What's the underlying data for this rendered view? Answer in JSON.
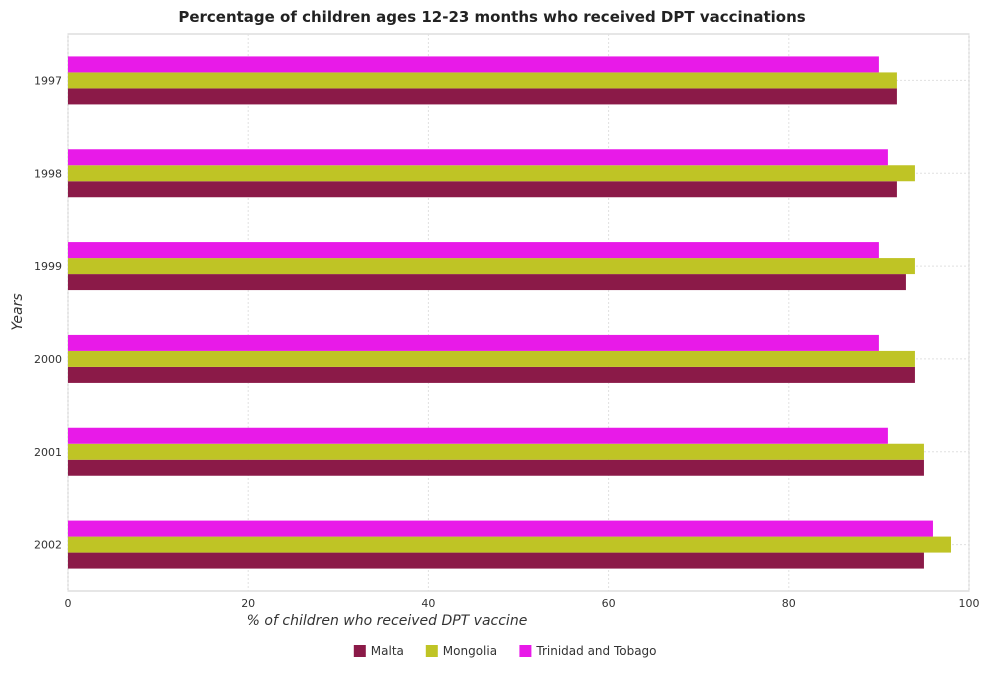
{
  "chart_data": {
    "type": "bar",
    "orientation": "horizontal",
    "title": "Percentage of children ages 12-23 months who received DPT vaccinations",
    "xlabel": "% of children who received DPT vaccine",
    "ylabel": "Years",
    "categories": [
      "1997",
      "1998",
      "1999",
      "2000",
      "2001",
      "2002"
    ],
    "xlim": [
      0,
      100
    ],
    "xticks": [
      "0",
      "20",
      "40",
      "60",
      "80",
      "100"
    ],
    "grid": true,
    "legend_position": "bottom",
    "series": [
      {
        "name": "Malta",
        "color": "#8b1a48",
        "values": [
          92,
          92,
          93,
          94,
          95,
          95
        ]
      },
      {
        "name": "Mongolia",
        "color": "#bfc425",
        "values": [
          92,
          94,
          94,
          94,
          95,
          98
        ]
      },
      {
        "name": "Trinidad and Tobago",
        "color": "#e81ae8",
        "values": [
          90,
          91,
          90,
          90,
          91,
          96
        ]
      }
    ]
  }
}
